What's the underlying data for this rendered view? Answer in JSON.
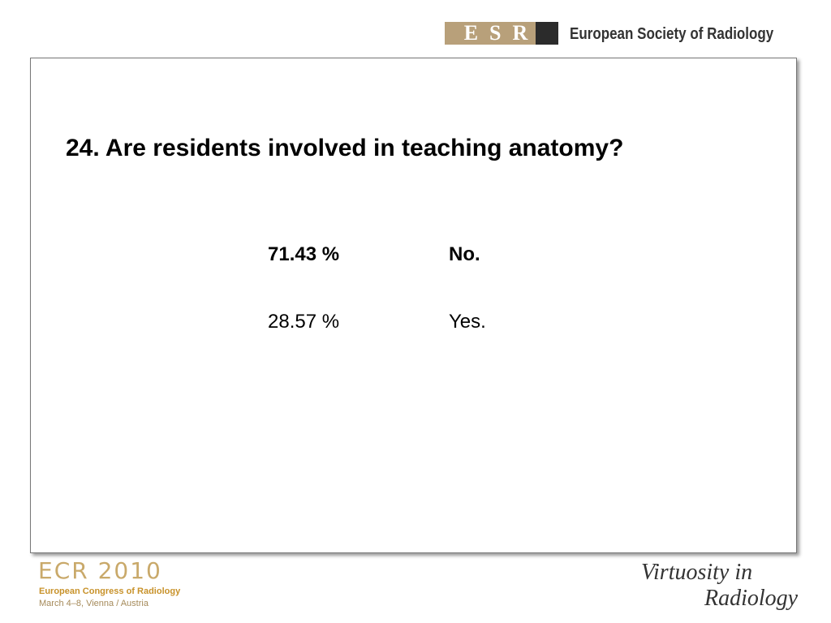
{
  "header": {
    "logo": "ESR",
    "organization": "European Society of Radiology"
  },
  "slide": {
    "title": "24. Are residents involved in teaching anatomy?",
    "table": {
      "rows": [
        [
          "71.43 %",
          "No."
        ],
        [
          "28.57 %",
          "Yes."
        ]
      ]
    }
  },
  "footer": {
    "event": "ECR 2010",
    "congress": "European Congress of Radiology",
    "dates": "March 4–8, Vienna / Austria",
    "motto": [
      "Virtuosity in",
      "Radiology"
    ]
  }
}
